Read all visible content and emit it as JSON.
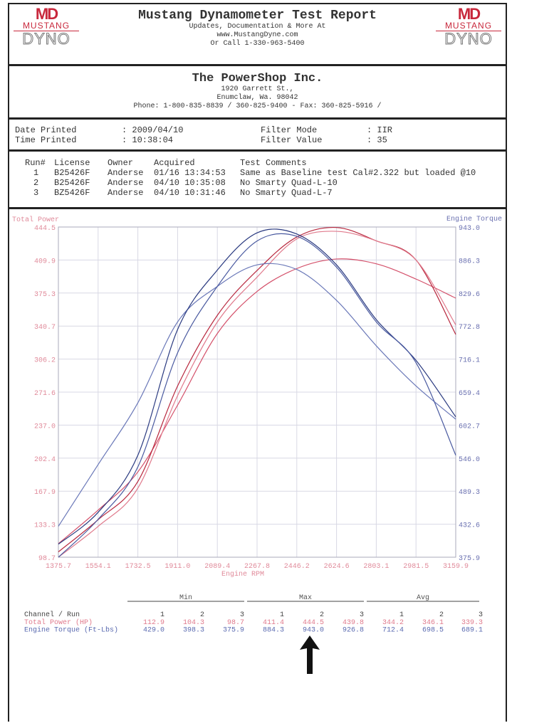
{
  "header": {
    "title": "Mustang Dynamometer Test Report",
    "line1": "Updates, Documentation & More At",
    "line2": "www.MustangDyne.com",
    "line3": "Or Call 1-330-963-5400",
    "logo_text": "MD MUSTANG DYNO"
  },
  "shop": {
    "name": "The PowerShop Inc.",
    "address": "1920 Garrett St.,",
    "city": "Enumclaw, Wa.  98042",
    "phone": "Phone: 1-800-835-8839 / 360-825-9400 - Fax: 360-825-5916 /"
  },
  "info": {
    "date_label": "Date Printed",
    "date_value": ": 2009/04/10",
    "time_label": "Time Printed",
    "time_value": ": 10:38:04",
    "filter_mode_label": "Filter Mode",
    "filter_mode_value": ": IIR",
    "filter_value_label": "Filter Value",
    "filter_value_value": ": 35"
  },
  "runs": {
    "headers": [
      "Run#",
      "License",
      "Owner",
      "Acquired",
      "Test Comments"
    ],
    "rows": [
      [
        "1",
        "B25426F",
        "Anderse",
        "01/16 13:34:53",
        "Same as Baseline test Cal#2.322 but loaded @10"
      ],
      [
        "2",
        "B25426F",
        "Anderse",
        "04/10 10:35:08",
        "No Smarty Quad-L-10"
      ],
      [
        "3",
        "BZ5426F",
        "Anderse",
        "04/10 10:31:46",
        "No Smarty Quad-L-7"
      ]
    ]
  },
  "chart_data": {
    "type": "line",
    "xlabel": "Engine RPM",
    "ylabel": "Total Power",
    "y2label": "Engine Torque",
    "xlim": [
      1375.7,
      3159.9
    ],
    "ylim": [
      98.7,
      444.5
    ],
    "y2lim": [
      375.9,
      943.0
    ],
    "grid": true,
    "x_ticks": [
      "1375.7",
      "1554.1",
      "1732.5",
      "1911.0",
      "2089.4",
      "2267.8",
      "2446.2",
      "2624.6",
      "2803.1",
      "2981.5",
      "3159.9"
    ],
    "y_ticks": [
      "98.7",
      "133.3",
      "167.9",
      "202.4",
      "237.0",
      "271.6",
      "306.2",
      "340.7",
      "375.3",
      "409.9",
      "444.5"
    ],
    "y2_ticks": [
      "375.9",
      "432.6",
      "489.3",
      "546.0",
      "602.7",
      "659.4",
      "716.1",
      "772.8",
      "829.6",
      "886.3",
      "943.0"
    ],
    "x": [
      1375.7,
      1554.1,
      1732.5,
      1911.0,
      2089.4,
      2267.8,
      2446.2,
      2624.6,
      2803.1,
      2981.5,
      3159.9
    ],
    "series": [
      {
        "channel": "power",
        "run": "1",
        "axis": "left",
        "color": "#d4506a",
        "values": [
          112.9,
          148,
          188,
          258,
          333,
          377,
          401,
          411,
          406,
          390,
          370
        ]
      },
      {
        "channel": "power",
        "run": "2",
        "axis": "left",
        "color": "#b8283e",
        "values": [
          104.3,
          138,
          178,
          278,
          352,
          399,
          434,
          444,
          430,
          410,
          332
        ]
      },
      {
        "channel": "power",
        "run": "3",
        "axis": "left",
        "color": "#e07a8c",
        "values": [
          98.7,
          131,
          171,
          268,
          345,
          392,
          432,
          440,
          430,
          410,
          342
        ]
      },
      {
        "channel": "torque",
        "run": "1",
        "axis": "right",
        "color": "#6a78b8",
        "values": [
          429.0,
          535,
          641,
          780,
          841,
          878,
          870,
          817,
          739,
          670,
          613
        ]
      },
      {
        "channel": "torque",
        "run": "2",
        "axis": "right",
        "color": "#2a3a80",
        "values": [
          398.3,
          453,
          551,
          767,
          869,
          933,
          931,
          878,
          784,
          714,
          617
        ]
      },
      {
        "channel": "torque",
        "run": "3",
        "axis": "right",
        "color": "#4a5aa0",
        "values": [
          375.9,
          441,
          531,
          727,
          841,
          919,
          927,
          874,
          780,
          710,
          551
        ]
      }
    ]
  },
  "summary": {
    "groups": [
      "Min",
      "Max",
      "Avg"
    ],
    "channel_label": "Channel / Run",
    "runs": [
      "1",
      "2",
      "3",
      "1",
      "2",
      "3",
      "1",
      "2",
      "3"
    ],
    "rows": [
      {
        "label": "Total Power (HP)",
        "color": "#e07a8c",
        "values": [
          "112.9",
          "104.3",
          "98.7",
          "411.4",
          "444.5",
          "439.8",
          "344.2",
          "346.1",
          "339.3"
        ]
      },
      {
        "label": "Engine Torque (Ft-Lbs)",
        "color": "#5a6ab0",
        "values": [
          "429.0",
          "398.3",
          "375.9",
          "884.3",
          "943.0",
          "926.8",
          "712.4",
          "698.5",
          "689.1"
        ]
      }
    ]
  }
}
